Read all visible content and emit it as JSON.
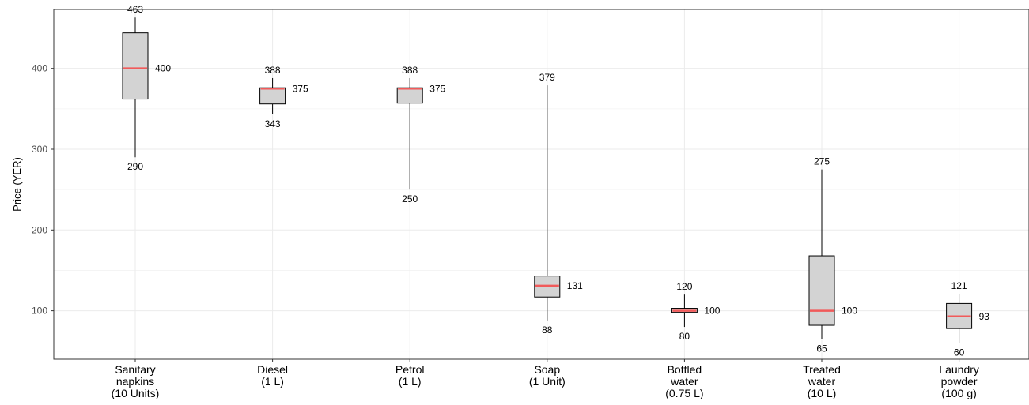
{
  "chart_data": {
    "type": "boxplot",
    "ylabel": "Price (YER)",
    "ylim": [
      40,
      473
    ],
    "yticks": [
      100,
      200,
      300,
      400
    ],
    "grid": true,
    "categories": [
      [
        "Sanitary",
        "napkins",
        "(10 Units)"
      ],
      [
        "Diesel",
        "(1 L)"
      ],
      [
        "Petrol",
        "(1 L)"
      ],
      [
        "Soap",
        "(1 Unit)"
      ],
      [
        "Bottled",
        "water",
        "(0.75 L)"
      ],
      [
        "Treated",
        "water",
        "(10 L)"
      ],
      [
        "Laundry",
        "powder",
        "(100 g)"
      ]
    ],
    "boxes": [
      {
        "min": 290,
        "q1": 362,
        "median": 400,
        "q3": 444,
        "max": 463
      },
      {
        "min": 343,
        "q1": 356,
        "median": 375,
        "q3": 376,
        "max": 388
      },
      {
        "min": 250,
        "q1": 357,
        "median": 375,
        "q3": 376,
        "max": 388
      },
      {
        "min": 88,
        "q1": 117,
        "median": 131,
        "q3": 143,
        "max": 379
      },
      {
        "min": 80,
        "q1": 98,
        "median": 100,
        "q3": 103,
        "max": 120
      },
      {
        "min": 65,
        "q1": 82,
        "median": 100,
        "q3": 168,
        "max": 275
      },
      {
        "min": 60,
        "q1": 78,
        "median": 93,
        "q3": 109,
        "max": 121
      }
    ]
  }
}
